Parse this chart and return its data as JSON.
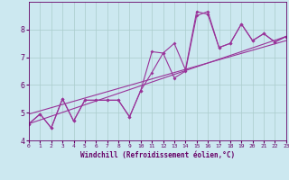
{
  "xlabel": "Windchill (Refroidissement éolien,°C)",
  "bg_color": "#cce8f0",
  "line_color": "#993399",
  "xlim": [
    0,
    23
  ],
  "ylim": [
    4,
    9
  ],
  "yticks": [
    4,
    5,
    6,
    7,
    8
  ],
  "xticks": [
    0,
    1,
    2,
    3,
    4,
    5,
    6,
    7,
    8,
    9,
    10,
    11,
    12,
    13,
    14,
    15,
    16,
    17,
    18,
    19,
    20,
    21,
    22,
    23
  ],
  "line1_x": [
    0,
    1,
    2,
    3,
    4,
    5,
    6,
    7,
    8,
    9,
    10,
    11,
    12,
    13,
    14,
    15,
    16,
    17,
    18,
    19,
    20,
    21,
    22,
    23
  ],
  "line1_y": [
    4.6,
    4.95,
    4.45,
    5.5,
    4.7,
    5.45,
    5.45,
    5.45,
    5.45,
    4.85,
    5.8,
    7.2,
    7.15,
    7.5,
    6.55,
    8.65,
    8.55,
    7.35,
    7.5,
    8.2,
    7.6,
    7.85,
    7.55,
    7.75
  ],
  "line2_x": [
    0,
    1,
    2,
    3,
    4,
    5,
    6,
    7,
    8,
    9,
    10,
    11,
    12,
    13,
    14,
    15,
    16,
    17,
    18,
    19,
    20,
    21,
    22,
    23
  ],
  "line2_y": [
    4.6,
    4.95,
    4.45,
    5.5,
    4.7,
    5.45,
    5.45,
    5.45,
    5.45,
    4.85,
    5.8,
    6.45,
    7.15,
    6.25,
    6.5,
    8.5,
    8.65,
    7.35,
    7.5,
    8.2,
    7.6,
    7.85,
    7.55,
    7.75
  ],
  "trend1_x": [
    0,
    23
  ],
  "trend1_y": [
    4.6,
    7.75
  ],
  "trend2_x": [
    0,
    23
  ],
  "trend2_y": [
    4.95,
    7.6
  ],
  "grid_color": "#aacccc",
  "font_color": "#660066",
  "xlabel_fontsize": 5.5,
  "tick_fontsize_x": 4.5,
  "tick_fontsize_y": 6.0,
  "lw": 0.8,
  "markersize": 2.0
}
